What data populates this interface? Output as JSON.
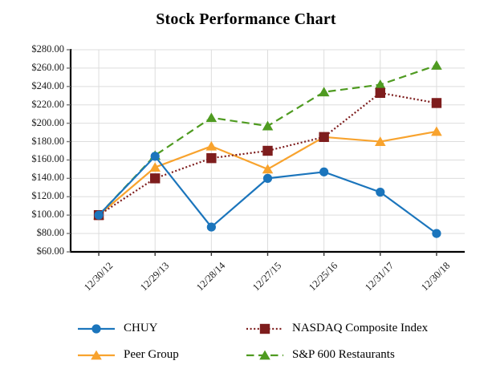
{
  "title": "Stock Performance Chart",
  "colors": {
    "grid": "#DDDDDD",
    "axis": "#000000",
    "tick": "#777777",
    "text": "#1A1A1A"
  },
  "chart_data": {
    "type": "line",
    "title": "Stock Performance Chart",
    "categories": [
      "12/30/12",
      "12/29/13",
      "12/28/14",
      "12/27/15",
      "12/25/16",
      "12/31/17",
      "12/30/18"
    ],
    "series": [
      {
        "name": "CHUY",
        "color": "#1B75BC",
        "marker": "circle",
        "line_style": "solid",
        "values": [
          100,
          164,
          87,
          140,
          147,
          125,
          80
        ]
      },
      {
        "name": "NASDAQ Composite Index",
        "color": "#7E1D1D",
        "marker": "square",
        "line_style": "dotted",
        "values": [
          100,
          140,
          162,
          170,
          185,
          233,
          222
        ]
      },
      {
        "name": "Peer Group",
        "color": "#F8A32E",
        "marker": "triangle",
        "line_style": "solid",
        "values": [
          100,
          152,
          175,
          150,
          185,
          180,
          191
        ]
      },
      {
        "name": "S&P 600 Restaurants",
        "color": "#4F9B21",
        "marker": "triangle",
        "line_style": "dashed",
        "values": [
          100,
          165,
          206,
          197,
          234,
          242,
          263
        ]
      }
    ],
    "y_axis": {
      "min": 60,
      "max": 280,
      "step": 20,
      "tick_labels": [
        "$280.00",
        "$260.00",
        "$240.00",
        "$220.00",
        "$200.00",
        "$180.00",
        "$160.00",
        "$140.00",
        "$120.00",
        "$100.00",
        "$80.00",
        "$60.00"
      ]
    },
    "x_axis": {
      "tick_labels": [
        "12/30/12",
        "12/29/13",
        "12/28/14",
        "12/27/15",
        "12/25/16",
        "12/31/17",
        "12/30/18"
      ]
    },
    "grid": true,
    "legend_position": "bottom"
  }
}
